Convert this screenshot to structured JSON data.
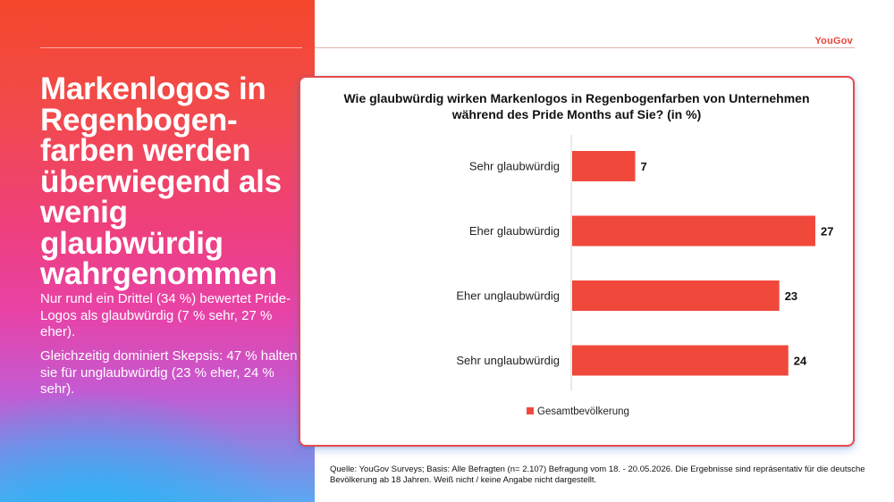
{
  "headline": "Markenlogos in Regenbogen-farben werden überwiegend als wenig glaubwürdig wahrgenommen",
  "paragraphs": [
    "Nur rund ein Drittel (34 %) bewertet Pride-Logos als glaubwürdig (7 % sehr, 27 % eher).",
    "Gleichzeitig dominiert Skepsis: 47 % halten sie für unglaubwürdig (23 % eher, 24 % sehr)."
  ],
  "brand": "YouGov",
  "footnote": "Quelle: YouGov Surveys; Basis: Alle Befragten (n= 2.107)  Befragung vom 18. - 20.05.2026. Die Ergebnisse sind repräsentativ für die deutsche Bevölkerung ab 18 Jahren. Weiß nicht / keine Angabe nicht dargestellt.",
  "colors": {
    "bar": "#f0493c",
    "accent": "#e8463a"
  },
  "chart_data": {
    "type": "bar",
    "orientation": "horizontal",
    "title": "Wie glaubwürdig wirken Markenlogos in Regenbogenfarben von Unternehmen\nwährend des Pride Months auf Sie? (in %)",
    "categories": [
      "Sehr glaubwürdig",
      "Eher glaubwürdig",
      "Eher unglaubwürdig",
      "Sehr unglaubwürdig"
    ],
    "series": [
      {
        "name": "Gesamtbevölkerung",
        "values": [
          7,
          27,
          23,
          24
        ]
      }
    ],
    "xlim": [
      0,
      27
    ],
    "grid": false,
    "legend": "bottom"
  }
}
